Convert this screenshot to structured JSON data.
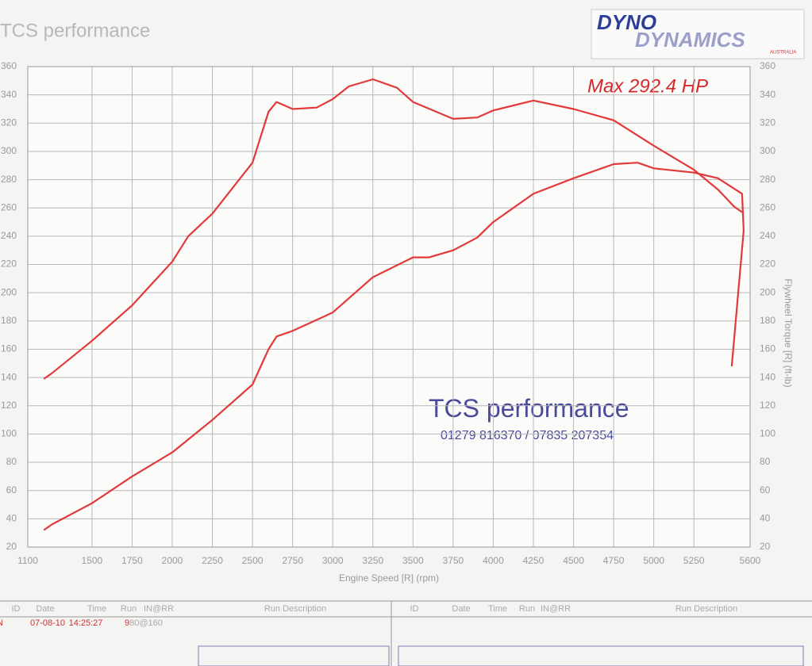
{
  "chart_data": {
    "type": "line",
    "title": "TCS performance",
    "logo": [
      "DYNO",
      "DYNAMICS",
      "AUSTRALIA"
    ],
    "annotation": "Max 292.4 HP",
    "watermark": "TCS performance",
    "phone": "01279 816370 / 07835 207354",
    "xlabel": "Engine Speed [R] (rpm)",
    "y2label": "Flywheel Torque [R] (ft-lb)",
    "xlim": [
      1100,
      5600
    ],
    "ylim": [
      20,
      360
    ],
    "y2lim": [
      20,
      360
    ],
    "xticks": [
      1100,
      1500,
      1750,
      2000,
      2250,
      2500,
      2750,
      3000,
      3250,
      3500,
      3750,
      4000,
      4250,
      4500,
      4750,
      5000,
      5250,
      5600
    ],
    "yticks": [
      20,
      40,
      60,
      80,
      100,
      120,
      140,
      160,
      180,
      200,
      220,
      240,
      260,
      280,
      300,
      320,
      340,
      360
    ],
    "y2ticks": [
      20,
      40,
      60,
      80,
      100,
      120,
      140,
      160,
      180,
      200,
      220,
      240,
      260,
      280,
      300,
      320,
      340,
      360
    ],
    "grid": true,
    "series": [
      {
        "color": "#e23a3a",
        "x": [
          1200,
          1250,
          1500,
          1750,
          2000,
          2100,
          2250,
          2500,
          2600,
          2650,
          2750,
          2900,
          3000,
          3100,
          3250,
          3400,
          3500,
          3750,
          3900,
          4000,
          4250,
          4500,
          4750,
          5000,
          5250,
          5400,
          5500,
          5550
        ],
        "values": [
          139,
          143,
          166,
          191,
          222,
          240,
          256,
          292,
          328,
          335,
          330,
          331,
          337,
          346,
          351,
          345,
          335,
          323,
          324,
          329,
          336,
          330,
          322,
          304,
          287,
          273,
          261,
          257
        ]
      },
      {
        "color": "#e23a3a",
        "x": [
          1200,
          1250,
          1500,
          1750,
          2000,
          2250,
          2500,
          2600,
          2650,
          2750,
          3000,
          3250,
          3500,
          3600,
          3750,
          3900,
          4000,
          4250,
          4500,
          4750,
          4900,
          5000,
          5250,
          5400,
          5550,
          5560,
          5486
        ],
        "values": [
          32,
          36,
          51,
          70,
          87,
          110,
          135,
          160,
          169,
          173,
          186,
          211,
          225,
          225,
          230,
          239,
          250,
          270,
          281,
          291,
          292,
          288,
          285,
          281,
          270,
          244,
          148
        ]
      }
    ]
  },
  "table": {
    "headers": [
      "ID",
      "Date",
      "Time",
      "Run",
      "IN@RR",
      "Run Description",
      "ID",
      "Date",
      "Time",
      "Run",
      "IN@RR",
      "Run Description"
    ],
    "row": [
      "N",
      "07-08-10",
      "14:25:27",
      "9",
      "80@160"
    ]
  }
}
